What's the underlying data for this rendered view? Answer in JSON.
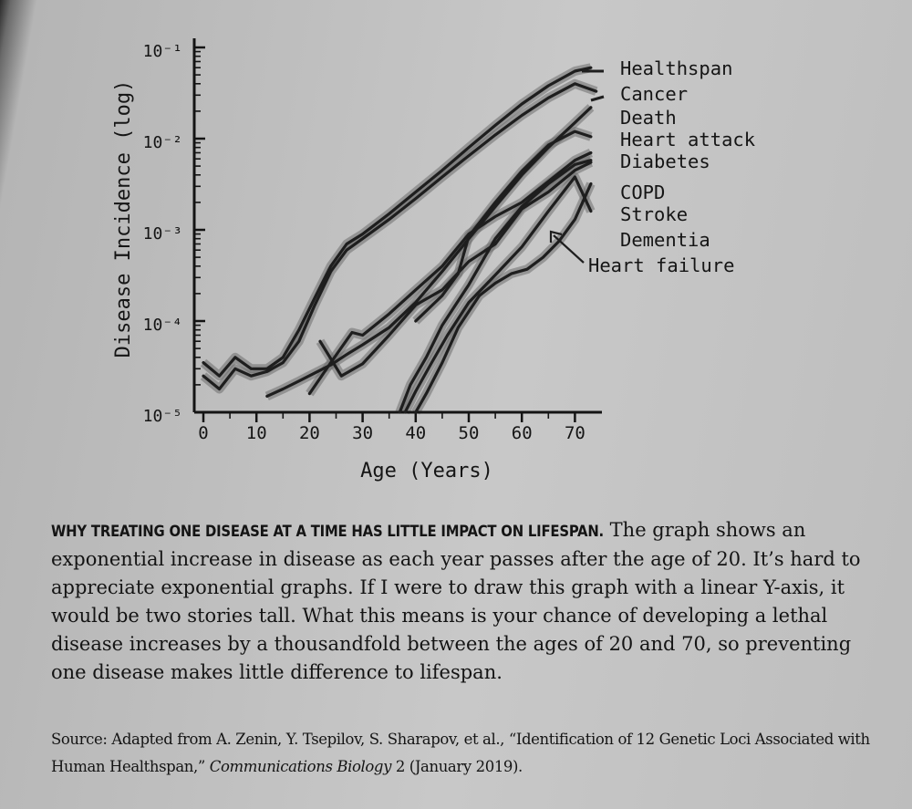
{
  "chart_data": {
    "type": "line",
    "xlabel": "Age (Years)",
    "ylabel": "Disease Incidence (log)",
    "y_scale": "log",
    "xlim": [
      -5,
      78
    ],
    "ylim": [
      1e-05,
      0.1
    ],
    "x_ticks": [
      0,
      10,
      20,
      30,
      40,
      50,
      60,
      70
    ],
    "y_ticks": [
      {
        "value": 1e-05,
        "label": "10⁻⁵"
      },
      {
        "value": 0.0001,
        "label": "10⁻⁴"
      },
      {
        "value": 0.001,
        "label": "10⁻³"
      },
      {
        "value": 0.01,
        "label": "10⁻²"
      },
      {
        "value": 0.1,
        "label": "10⁻¹"
      }
    ],
    "grid": false,
    "series": [
      {
        "name": "Healthspan",
        "x": [
          0,
          3,
          6,
          9,
          12,
          15,
          18,
          21,
          24,
          27,
          30,
          35,
          40,
          45,
          50,
          55,
          60,
          65,
          70,
          73
        ],
        "y": [
          3.5e-05,
          2.5e-05,
          4e-05,
          3e-05,
          3e-05,
          4e-05,
          8e-05,
          0.00018,
          0.0004,
          0.0007,
          0.0009,
          0.0015,
          0.0026,
          0.0045,
          0.008,
          0.014,
          0.024,
          0.038,
          0.055,
          0.06
        ]
      },
      {
        "name": "Cancer",
        "x": [
          0,
          3,
          6,
          9,
          12,
          15,
          18,
          21,
          24,
          27,
          30,
          35,
          40,
          45,
          50,
          55,
          60,
          65,
          70,
          74
        ],
        "y": [
          2.5e-05,
          1.8e-05,
          3e-05,
          2.5e-05,
          2.8e-05,
          3.5e-05,
          6e-05,
          0.00015,
          0.00035,
          0.0006,
          0.0008,
          0.0013,
          0.0022,
          0.0038,
          0.0065,
          0.011,
          0.018,
          0.028,
          0.04,
          0.033
        ]
      },
      {
        "name": "Death",
        "x": [
          12,
          15,
          18,
          21,
          24,
          27,
          30,
          35,
          40,
          45,
          50,
          55,
          60,
          65,
          70,
          73
        ],
        "y": [
          1.5e-05,
          1.8e-05,
          2.2e-05,
          2.7e-05,
          3.3e-05,
          4.3e-05,
          5.5e-05,
          8.5e-05,
          0.00016,
          0.00035,
          0.0008,
          0.0018,
          0.004,
          0.008,
          0.015,
          0.022
        ]
      },
      {
        "name": "Heart attack",
        "x": [
          40,
          45,
          48,
          50,
          55,
          60,
          65,
          70,
          73
        ],
        "y": [
          0.0001,
          0.00019,
          0.00033,
          0.00085,
          0.002,
          0.0044,
          0.0085,
          0.012,
          0.0105
        ]
      },
      {
        "name": "Diabetes",
        "x": [
          20,
          24,
          28,
          30,
          35,
          40,
          45,
          50,
          55,
          60,
          65,
          70,
          73
        ],
        "y": [
          1.6e-05,
          3.5e-05,
          7.5e-05,
          7e-05,
          0.00012,
          0.00022,
          0.0004,
          0.0009,
          0.0014,
          0.002,
          0.0034,
          0.0058,
          0.007
        ]
      },
      {
        "name": "COPD",
        "x": [
          22,
          26,
          30,
          35,
          40,
          45,
          50,
          55,
          60,
          65,
          70,
          73
        ],
        "y": [
          6e-05,
          2.5e-05,
          3.4e-05,
          7e-05,
          0.00015,
          0.00022,
          0.00045,
          0.0007,
          0.0017,
          0.0026,
          0.0045,
          0.0055
        ]
      },
      {
        "name": "Stroke",
        "x": [
          37,
          39,
          42,
          45,
          50,
          55,
          60,
          65,
          70,
          73
        ],
        "y": [
          1e-05,
          2e-05,
          4e-05,
          9e-05,
          0.00025,
          0.0008,
          0.0018,
          0.0032,
          0.0052,
          0.0058
        ]
      },
      {
        "name": "Dementia",
        "x": [
          38,
          40,
          43,
          46,
          50,
          55,
          60,
          65,
          70,
          73
        ],
        "y": [
          1e-05,
          1.7e-05,
          3.5e-05,
          7e-05,
          0.00016,
          0.00032,
          0.00065,
          0.0016,
          0.0038,
          0.0016
        ]
      },
      {
        "name": "Heart failure",
        "x": [
          40,
          42,
          45,
          48,
          52,
          55,
          58,
          61,
          64,
          67,
          70,
          73
        ],
        "y": [
          1e-05,
          1.6e-05,
          3.5e-05,
          8.5e-05,
          0.00019,
          0.00026,
          0.00033,
          0.00037,
          0.0005,
          0.00075,
          0.0013,
          0.0032
        ]
      }
    ],
    "annotations": [
      "Healthspan",
      "Cancer",
      "Death",
      "Heart attack",
      "Diabetes",
      "COPD",
      "Stroke",
      "Dementia",
      "Heart failure"
    ]
  },
  "caption": {
    "title": "WHY TREATING ONE DISEASE AT A TIME HAS LITTLE IMPACT ON LIFESPAN.",
    "body": " The graph shows an exponential increase in disease as each year passes after the age of 20. It’s hard to appreciate exponential graphs. If I were to draw this graph with a linear Y-axis, it would be two stories tall. What this means is your chance of developing a lethal disease increases by a thousandfold between the ages of 20 and 70, so preventing one disease makes little difference to lifespan."
  },
  "source": {
    "label": "Source:",
    "text_before": " Adapted from A. Zenin, Y. Tsepilov, S. Sharapov, et al., “Identification of 12 Genetic Loci Associated with Human Healthspan,” ",
    "journal": "Communications Biology",
    "text_after": " 2 (January 2019)."
  },
  "colors": {
    "ink": "#1e1e1e",
    "band": "#6e6e6e",
    "page": "#c4c4c4"
  }
}
